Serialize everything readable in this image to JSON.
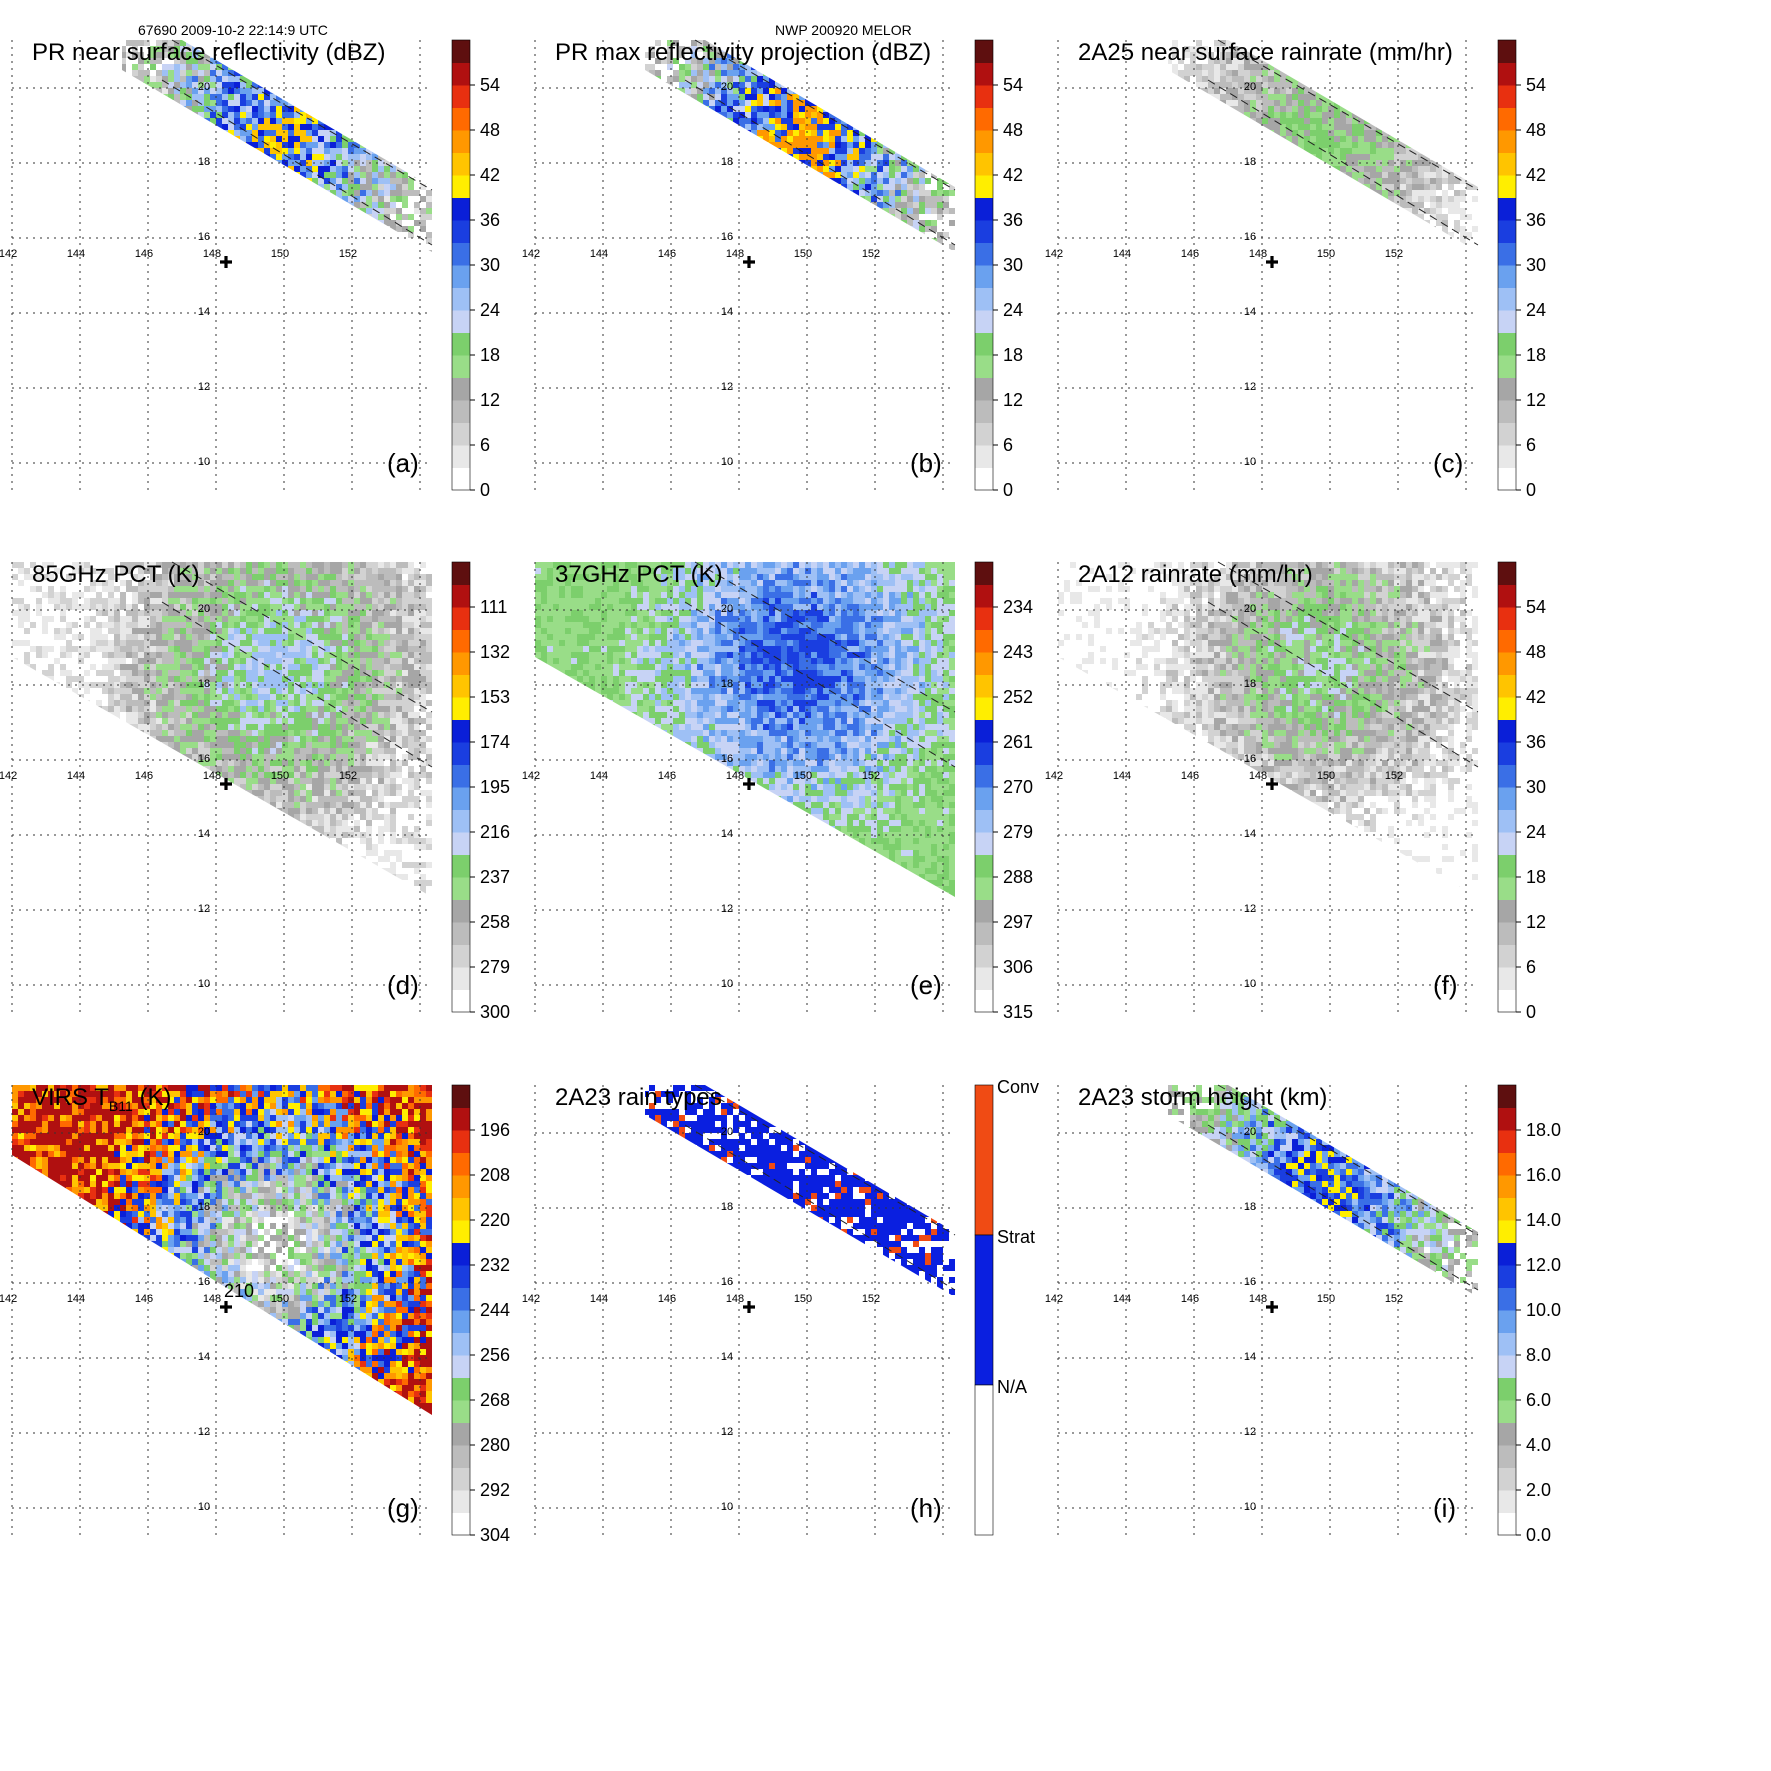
{
  "header": {
    "orbit_info": "67690 2009-10-2 22:14:9 UTC",
    "storm_info": "NWP 200920 MELOR"
  },
  "grid": {
    "lon_labels": [
      "142",
      "144",
      "146",
      "148",
      "150",
      "152"
    ],
    "lat_labels": [
      "20",
      "18",
      "16",
      "14",
      "12",
      "10"
    ]
  },
  "chart_data": [
    {
      "type": "heatmap",
      "panel": "(a)",
      "title": "PR near surface reflectivity (dBZ)",
      "colorbar_ticks": [
        "54",
        "48",
        "42",
        "36",
        "30",
        "24",
        "18",
        "12",
        "6",
        "0"
      ],
      "colorbar_range": [
        0,
        60
      ],
      "swath": "PR",
      "fill_range": [
        0,
        42
      ]
    },
    {
      "type": "heatmap",
      "panel": "(b)",
      "title": "PR max reflectivity projection (dBZ)",
      "colorbar_ticks": [
        "54",
        "48",
        "42",
        "36",
        "30",
        "24",
        "18",
        "12",
        "6",
        "0"
      ],
      "colorbar_range": [
        0,
        60
      ],
      "swath": "PR",
      "fill_range": [
        0,
        47
      ]
    },
    {
      "type": "heatmap",
      "panel": "(c)",
      "title": "2A25 near surface rainrate (mm/hr)",
      "colorbar_ticks": [
        "54",
        "48",
        "42",
        "36",
        "30",
        "24",
        "18",
        "12",
        "6",
        "0"
      ],
      "colorbar_range": [
        0,
        60
      ],
      "swath": "PR",
      "fill_range": [
        0,
        20
      ]
    },
    {
      "type": "heatmap",
      "panel": "(d)",
      "title": "85GHz PCT (K)",
      "colorbar_ticks": [
        "111",
        "132",
        "153",
        "174",
        "195",
        "216",
        "237",
        "258",
        "279",
        "300"
      ],
      "colorbar_range": [
        300,
        90
      ],
      "swath": "TMI",
      "fill_range": [
        290,
        210
      ]
    },
    {
      "type": "heatmap",
      "panel": "(e)",
      "title": "37GHz PCT (K)",
      "colorbar_ticks": [
        "234",
        "243",
        "252",
        "261",
        "270",
        "279",
        "288",
        "297",
        "306",
        "315"
      ],
      "colorbar_range": [
        315,
        225
      ],
      "swath": "TMI",
      "fill_range": [
        290,
        262
      ]
    },
    {
      "type": "heatmap",
      "panel": "(f)",
      "title": "2A12 rainrate (mm/hr)",
      "colorbar_ticks": [
        "54",
        "48",
        "42",
        "36",
        "30",
        "24",
        "18",
        "12",
        "6",
        "0"
      ],
      "colorbar_range": [
        0,
        60
      ],
      "swath": "TMI",
      "fill_range": [
        0,
        22
      ]
    },
    {
      "type": "heatmap",
      "panel": "(g)",
      "title_main": "VIRS T",
      "title_sub": "B11",
      "title_unit": " (K)",
      "colorbar_ticks": [
        "196",
        "208",
        "220",
        "232",
        "244",
        "256",
        "268",
        "280",
        "292",
        "304"
      ],
      "colorbar_range": [
        304,
        184
      ],
      "swath": "VIRS",
      "fill_range": [
        195,
        300
      ],
      "annotation": "210"
    },
    {
      "type": "heatmap",
      "panel": "(h)",
      "title": "2A23 rain types",
      "categories": [
        "Conv",
        "Strat",
        "N/A"
      ],
      "colors": [
        "#f04b14",
        "#0a1fe0",
        "#ffffff"
      ],
      "swath": "PR"
    },
    {
      "type": "heatmap",
      "panel": "(i)",
      "title": "2A23 storm height (km)",
      "colorbar_ticks": [
        "18.0",
        "16.0",
        "14.0",
        "12.0",
        "10.0",
        "8.0",
        "6.0",
        "4.0",
        "2.0",
        "0.0"
      ],
      "colorbar_range": [
        0,
        20
      ],
      "swath": "PR",
      "fill_range": [
        2,
        13
      ]
    }
  ]
}
